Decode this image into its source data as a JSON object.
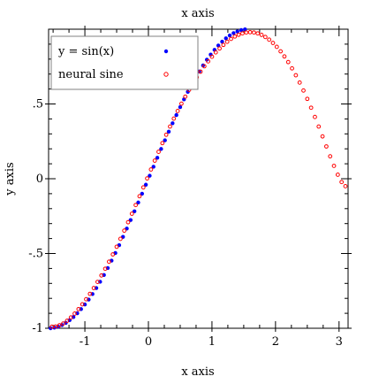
{
  "chart_data": {
    "type": "scatter",
    "title": "x axis",
    "xlabel": "x axis",
    "ylabel": "y axis",
    "xlim": [
      -1.571,
      3.142
    ],
    "ylim": [
      -1.0,
      1.0
    ],
    "x_ticks": [
      {
        "value": -1,
        "label": "-1"
      },
      {
        "value": 0,
        "label": "0"
      },
      {
        "value": 1,
        "label": "1"
      },
      {
        "value": 2,
        "label": "2"
      },
      {
        "value": 3,
        "label": "3"
      }
    ],
    "y_ticks": [
      {
        "value": -1,
        "label": "-1"
      },
      {
        "value": -0.5,
        "label": "-.5"
      },
      {
        "value": 0,
        "label": "0"
      },
      {
        "value": 0.5,
        "label": ".5"
      }
    ],
    "grid": false,
    "legend_position": "top-left",
    "series": [
      {
        "name": "y = sin(x)",
        "marker": "filled-dot",
        "color": "#0000ff",
        "x": [
          -1.54,
          -1.48,
          -1.42,
          -1.36,
          -1.3,
          -1.24,
          -1.18,
          -1.12,
          -1.06,
          -1.0,
          -0.94,
          -0.88,
          -0.82,
          -0.76,
          -0.7,
          -0.64,
          -0.58,
          -0.52,
          -0.46,
          -0.4,
          -0.34,
          -0.28,
          -0.22,
          -0.16,
          -0.1,
          -0.04,
          0.02,
          0.08,
          0.14,
          0.2,
          0.26,
          0.32,
          0.38,
          0.44,
          0.5,
          0.56,
          0.62,
          0.68,
          0.74,
          0.8,
          0.86,
          0.92,
          0.98,
          1.04,
          1.1,
          1.16,
          1.22,
          1.28,
          1.34,
          1.4,
          1.46,
          1.52
        ],
        "y": [
          -1.0,
          -0.996,
          -0.989,
          -0.978,
          -0.964,
          -0.946,
          -0.925,
          -0.9,
          -0.872,
          -0.841,
          -0.808,
          -0.771,
          -0.731,
          -0.689,
          -0.644,
          -0.597,
          -0.548,
          -0.497,
          -0.444,
          -0.389,
          -0.333,
          -0.276,
          -0.218,
          -0.159,
          -0.1,
          -0.04,
          0.02,
          0.08,
          0.14,
          0.199,
          0.257,
          0.315,
          0.371,
          0.426,
          0.479,
          0.531,
          0.581,
          0.629,
          0.674,
          0.717,
          0.758,
          0.796,
          0.83,
          0.862,
          0.891,
          0.917,
          0.939,
          0.958,
          0.974,
          0.985,
          0.994,
          0.999
        ]
      },
      {
        "name": "neural sine",
        "marker": "hollow-circle",
        "color": "#ff0000",
        "x": [
          -1.52,
          -1.46,
          -1.4,
          -1.34,
          -1.28,
          -1.22,
          -1.16,
          -1.1,
          -1.04,
          -0.98,
          -0.92,
          -0.86,
          -0.8,
          -0.74,
          -0.68,
          -0.62,
          -0.56,
          -0.5,
          -0.44,
          -0.38,
          -0.32,
          -0.26,
          -0.2,
          -0.14,
          -0.08,
          -0.02,
          0.04,
          0.1,
          0.16,
          0.22,
          0.28,
          0.34,
          0.4,
          0.46,
          0.52,
          0.58,
          0.64,
          0.7,
          0.76,
          0.82,
          0.88,
          0.94,
          1.0,
          1.06,
          1.12,
          1.18,
          1.24,
          1.3,
          1.36,
          1.42,
          1.48,
          1.54,
          1.6,
          1.66,
          1.72,
          1.78,
          1.84,
          1.9,
          1.96,
          2.02,
          2.08,
          2.14,
          2.2,
          2.26,
          2.32,
          2.38,
          2.44,
          2.5,
          2.56,
          2.62,
          2.68,
          2.74,
          2.8,
          2.86,
          2.92,
          2.98,
          3.04,
          3.1
        ],
        "y": [
          -0.99,
          -0.988,
          -0.98,
          -0.968,
          -0.95,
          -0.928,
          -0.902,
          -0.872,
          -0.84,
          -0.806,
          -0.77,
          -0.731,
          -0.69,
          -0.647,
          -0.602,
          -0.555,
          -0.506,
          -0.455,
          -0.402,
          -0.347,
          -0.291,
          -0.234,
          -0.176,
          -0.117,
          -0.058,
          0.002,
          0.062,
          0.121,
          0.18,
          0.238,
          0.294,
          0.349,
          0.402,
          0.453,
          0.502,
          0.549,
          0.594,
          0.637,
          0.678,
          0.716,
          0.752,
          0.785,
          0.816,
          0.845,
          0.871,
          0.895,
          0.916,
          0.935,
          0.951,
          0.963,
          0.972,
          0.978,
          0.98,
          0.978,
          0.972,
          0.962,
          0.948,
          0.93,
          0.908,
          0.882,
          0.852,
          0.818,
          0.78,
          0.738,
          0.692,
          0.643,
          0.59,
          0.534,
          0.475,
          0.413,
          0.349,
          0.283,
          0.216,
          0.15,
          0.086,
          0.027,
          -0.022,
          -0.05
        ]
      }
    ]
  }
}
